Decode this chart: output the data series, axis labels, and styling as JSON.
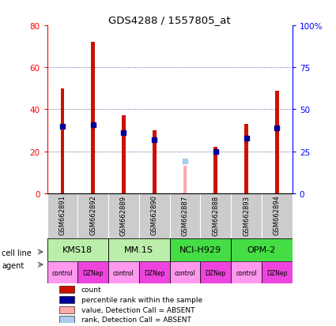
{
  "title": "GDS4288 / 1557805_at",
  "samples": [
    "GSM662891",
    "GSM662892",
    "GSM662889",
    "GSM662890",
    "GSM662887",
    "GSM662888",
    "GSM662893",
    "GSM662894"
  ],
  "counts": [
    50,
    72,
    37,
    30,
    null,
    22,
    33,
    49
  ],
  "percentile_ranks": [
    40,
    41,
    36,
    32,
    null,
    25,
    33,
    39
  ],
  "absent_value": [
    null,
    null,
    null,
    null,
    13,
    null,
    null,
    null
  ],
  "absent_rank": [
    null,
    null,
    null,
    null,
    19,
    null,
    null,
    null
  ],
  "cell_line_positions": [
    {
      "start": 0,
      "end": 1,
      "label": "KMS18",
      "color": "#BBEEAA"
    },
    {
      "start": 2,
      "end": 3,
      "label": "MM.1S",
      "color": "#BBEEAA"
    },
    {
      "start": 4,
      "end": 5,
      "label": "NCI-H929",
      "color": "#44DD44"
    },
    {
      "start": 6,
      "end": 7,
      "label": "OPM-2",
      "color": "#44DD44"
    }
  ],
  "agents": [
    "control",
    "DZNep",
    "control",
    "DZNep",
    "control",
    "DZNep",
    "control",
    "DZNep"
  ],
  "agent_color_control": "#FF99EE",
  "agent_color_dznep": "#EE44DD",
  "bar_color_red": "#CC1100",
  "bar_color_blue": "#000099",
  "absent_bar_color": "#FFAAAA",
  "absent_rank_color": "#AACCEE",
  "ylim_left": [
    0,
    80
  ],
  "ylim_right": [
    0,
    100
  ],
  "yticks_left": [
    0,
    20,
    40,
    60,
    80
  ],
  "ytick_labels_left": [
    "0",
    "20",
    "40",
    "60",
    "80"
  ],
  "yticks_right_vals": [
    0,
    25,
    50,
    75,
    100
  ],
  "ytick_labels_right": [
    "0",
    "25",
    "50",
    "75",
    "100%"
  ],
  "grid_yticks": [
    20,
    40,
    60
  ],
  "label_area_color": "#CCCCCC",
  "red_bar_width": 0.12,
  "blue_marker_size": 5
}
